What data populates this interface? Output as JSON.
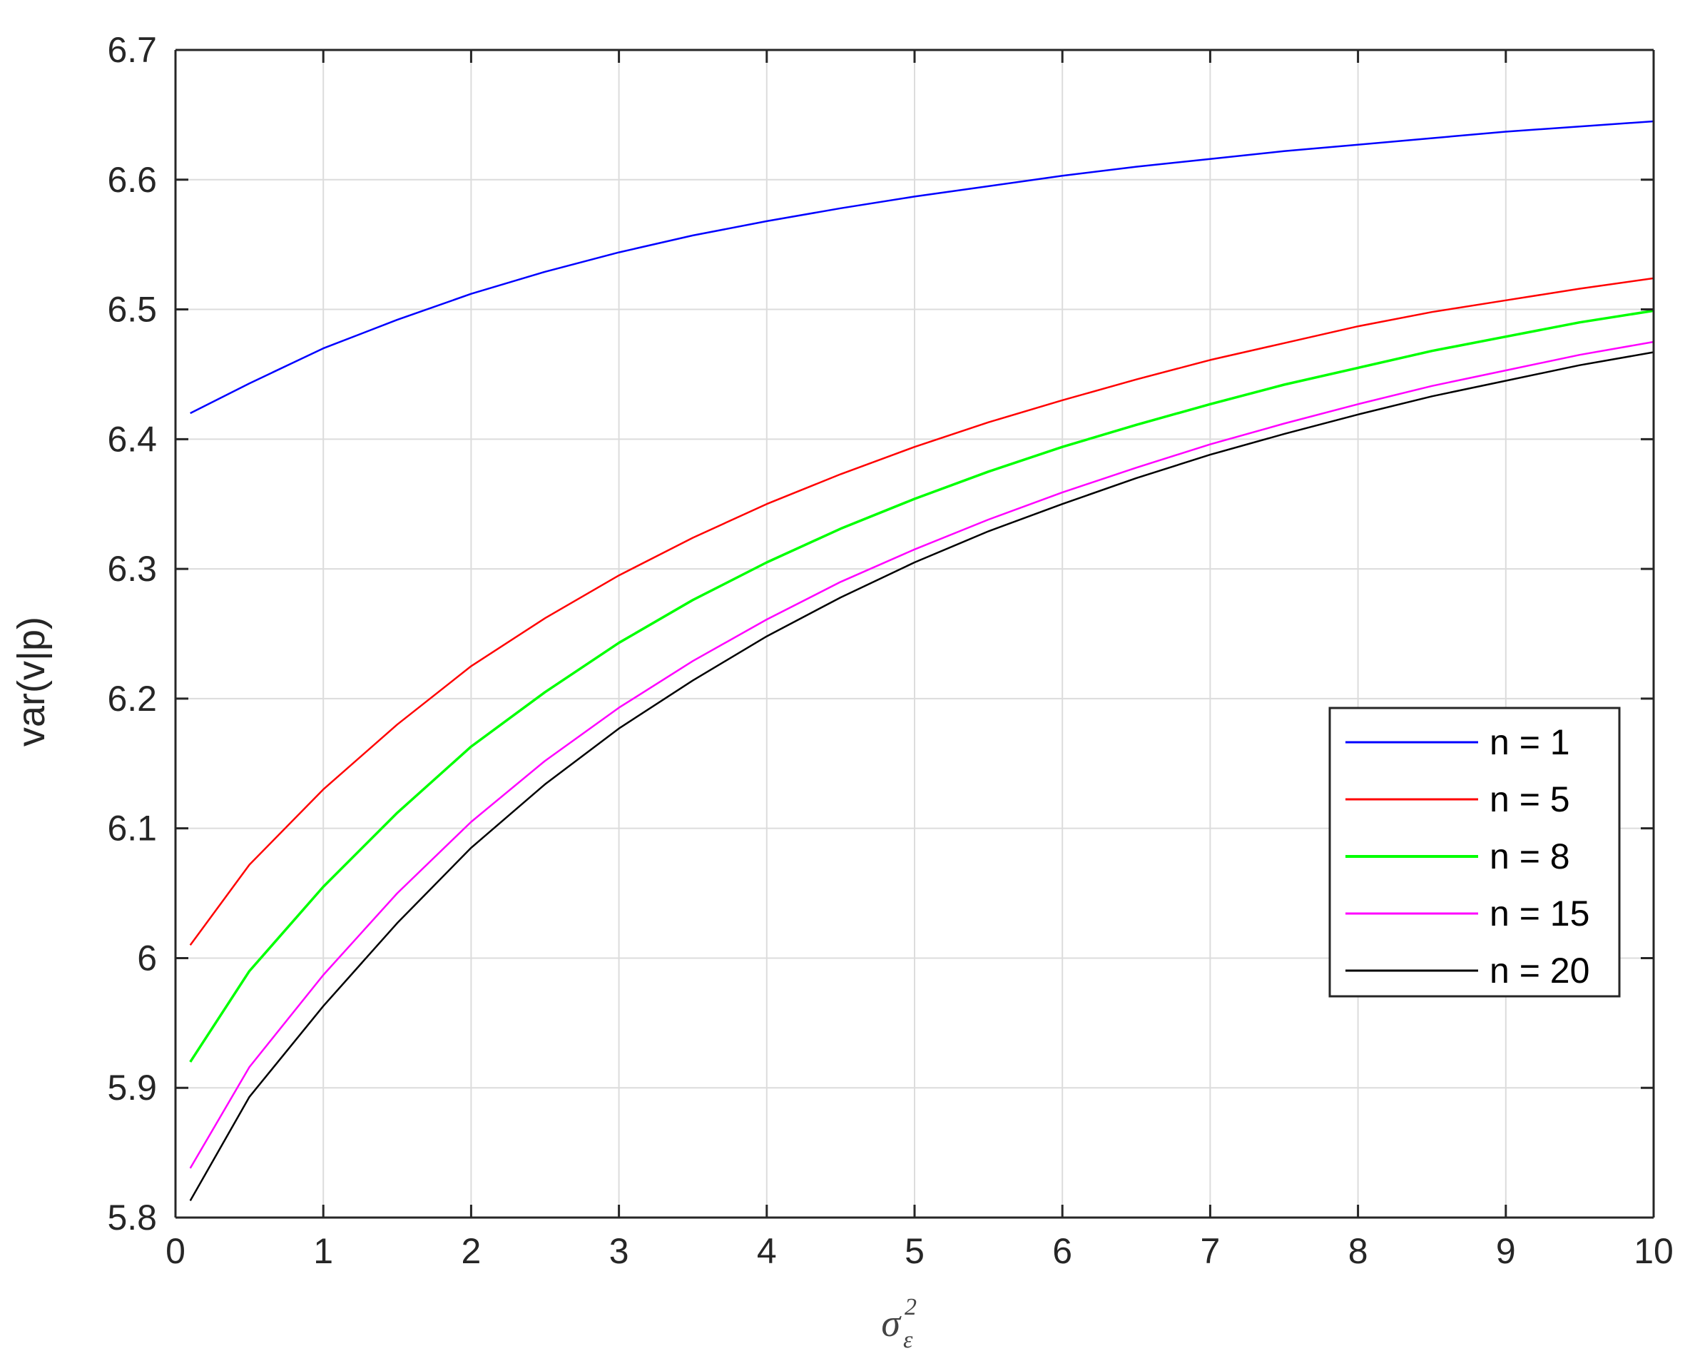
{
  "chart_data": {
    "type": "line",
    "title": "",
    "xlabel": "σ",
    "xlabel_superscript": "2",
    "xlabel_subscript": "ε",
    "ylabel": "var(v|p)",
    "xlim": [
      0,
      10
    ],
    "ylim": [
      5.8,
      6.7
    ],
    "xticks": [
      0,
      1,
      2,
      3,
      4,
      5,
      6,
      7,
      8,
      9,
      10
    ],
    "yticks": [
      5.8,
      5.9,
      6.0,
      6.1,
      6.2,
      6.3,
      6.4,
      6.5,
      6.6,
      6.7
    ],
    "ytick_labels": [
      "5.8",
      "5.9",
      "6",
      "6.1",
      "6.2",
      "6.3",
      "6.4",
      "6.5",
      "6.6",
      "6.7"
    ],
    "grid": true,
    "legend_position": "right",
    "x": [
      0.1,
      0.5,
      1,
      1.5,
      2,
      2.5,
      3,
      3.5,
      4,
      4.5,
      5,
      5.5,
      6,
      6.5,
      7,
      7.5,
      8,
      8.5,
      9,
      9.5,
      10
    ],
    "series": [
      {
        "name": "n = 1",
        "color": "#0000ff",
        "values": [
          6.42,
          6.443,
          6.47,
          6.492,
          6.512,
          6.529,
          6.544,
          6.557,
          6.568,
          6.578,
          6.587,
          6.595,
          6.603,
          6.61,
          6.616,
          6.622,
          6.627,
          6.632,
          6.637,
          6.641,
          6.645
        ]
      },
      {
        "name": "n = 5",
        "color": "#ff0000",
        "values": [
          6.01,
          6.072,
          6.13,
          6.18,
          6.225,
          6.262,
          6.295,
          6.324,
          6.35,
          6.373,
          6.394,
          6.413,
          6.43,
          6.446,
          6.461,
          6.474,
          6.487,
          6.498,
          6.507,
          6.516,
          6.524
        ]
      },
      {
        "name": "n = 8",
        "color": "#00ff00",
        "values": [
          5.92,
          5.99,
          6.055,
          6.112,
          6.163,
          6.205,
          6.243,
          6.276,
          6.305,
          6.331,
          6.354,
          6.375,
          6.394,
          6.411,
          6.427,
          6.442,
          6.455,
          6.468,
          6.479,
          6.49,
          6.499
        ]
      },
      {
        "name": "n = 15",
        "color": "#ff00ff",
        "values": [
          5.838,
          5.916,
          5.987,
          6.05,
          6.105,
          6.152,
          6.193,
          6.229,
          6.261,
          6.29,
          6.315,
          6.338,
          6.359,
          6.378,
          6.396,
          6.412,
          6.427,
          6.441,
          6.453,
          6.465,
          6.475
        ]
      },
      {
        "name": "n = 20",
        "color": "#000000",
        "values": [
          5.813,
          5.893,
          5.963,
          6.027,
          6.085,
          6.134,
          6.177,
          6.214,
          6.248,
          6.278,
          6.305,
          6.329,
          6.35,
          6.37,
          6.388,
          6.404,
          6.419,
          6.433,
          6.445,
          6.457,
          6.467
        ]
      }
    ]
  }
}
